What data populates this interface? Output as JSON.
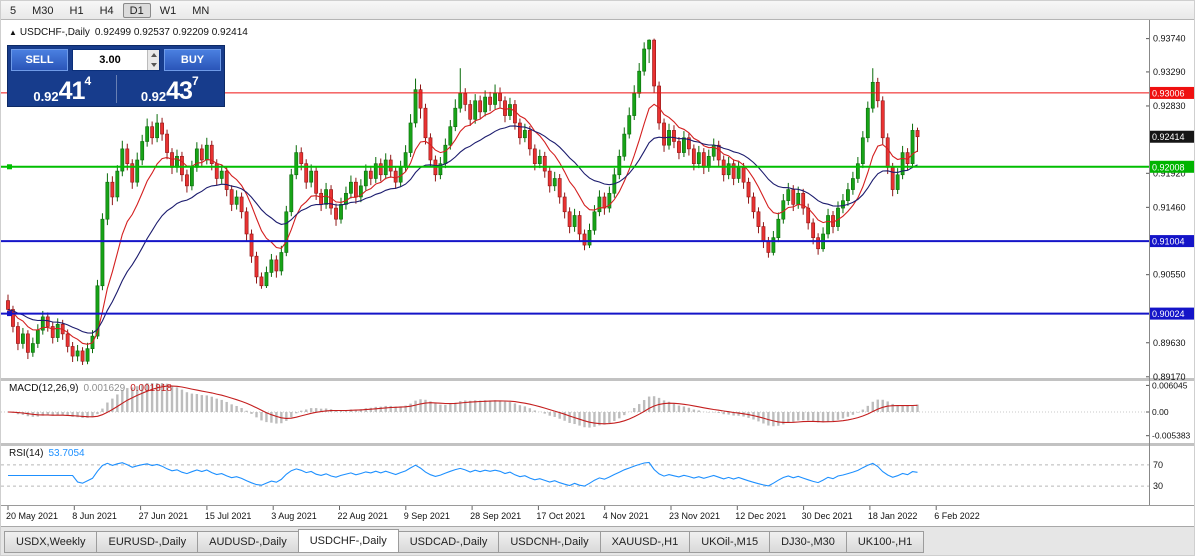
{
  "toolbar": {
    "timeframes": [
      "5",
      "M30",
      "H1",
      "H4",
      "D1",
      "W1",
      "MN"
    ],
    "active": "D1"
  },
  "chart": {
    "collapse_icon": "▲",
    "title": "USDCHF-,Daily",
    "ohlc_text": "0.92499 0.92537 0.92209 0.92414"
  },
  "one_click": {
    "sell_label": "SELL",
    "buy_label": "BUY",
    "volume": "3.00",
    "sell_price": {
      "prefix": "0.92",
      "big": "41",
      "sup": "4"
    },
    "buy_price": {
      "prefix": "0.92",
      "big": "43",
      "sup": "7"
    }
  },
  "indicators": {
    "macd": {
      "label": "MACD(12,26,9)",
      "value": "0.001629",
      "signal_value": "0.001818",
      "axis_labels": [
        "0.006045",
        "0.00",
        "-0.005383"
      ],
      "histogram_color": "#bdbdbd",
      "signal_color": "#c41e1e"
    },
    "rsi": {
      "label": "RSI(14)",
      "value": "53.7054",
      "levels": [
        "70",
        "30"
      ],
      "line_color": "#1e90ff"
    }
  },
  "price_axis": {
    "labels": [
      {
        "text": "0.93740",
        "price": 0.9374
      },
      {
        "text": "0.93290",
        "price": 0.9329
      },
      {
        "text": "0.92830",
        "price": 0.9283
      },
      {
        "text": "0.91920",
        "price": 0.9192
      },
      {
        "text": "0.91460",
        "price": 0.9146
      },
      {
        "text": "0.90550",
        "price": 0.9055
      },
      {
        "text": "0.89630",
        "price": 0.8963
      },
      {
        "text": "0.89170",
        "price": 0.8917
      }
    ],
    "tags": [
      {
        "text": "0.93006",
        "price": 0.93006,
        "color": "#ef1010",
        "name": "resistance-price-tag"
      },
      {
        "text": "0.92414",
        "price": 0.92414,
        "color": "#161616",
        "name": "current-price-tag"
      },
      {
        "text": "0.92008",
        "price": 0.92008,
        "color": "#00b400",
        "name": "support-green-price-tag"
      },
      {
        "text": "0.91004",
        "price": 0.91004,
        "color": "#1414c8",
        "name": "support-blue-price-tag"
      },
      {
        "text": "0.90024",
        "price": 0.90024,
        "color": "#1414c8",
        "name": "support-blue-price-tag-2"
      }
    ]
  },
  "hlines": [
    {
      "price": 0.93006,
      "color": "#ef1010",
      "width": 1,
      "handles": false,
      "name": "resistance-line"
    },
    {
      "price": 0.92008,
      "color": "#00be00",
      "width": 2,
      "handles": true,
      "name": "green-support-line"
    },
    {
      "price": 0.91004,
      "color": "#1414c8",
      "width": 2,
      "handles": false,
      "name": "blue-support-line"
    },
    {
      "price": 0.90024,
      "color": "#1414c8",
      "width": 2,
      "handles": true,
      "name": "blue-support-line-2"
    }
  ],
  "x_axis": {
    "dates": [
      "20 May 2021",
      "8 Jun 2021",
      "27 Jun 2021",
      "15 Jul 2021",
      "3 Aug 2021",
      "22 Aug 2021",
      "9 Sep 2021",
      "28 Sep 2021",
      "17 Oct 2021",
      "4 Nov 2021",
      "23 Nov 2021",
      "12 Dec 2021",
      "30 Dec 2021",
      "18 Jan 2022",
      "6 Feb 2022"
    ]
  },
  "tabs": {
    "items": [
      "USDX,Weekly",
      "EURUSD-,Daily",
      "AUDUSD-,Daily",
      "USDCHF-,Daily",
      "USDCAD-,Daily",
      "USDCNH-,Daily",
      "XAUUSD-,H1",
      "UKOil-,M15",
      "DJ30-,M30",
      "UK100-,H1"
    ],
    "active": "USDCHF-,Daily"
  },
  "chart_data": {
    "type": "candlestick",
    "symbol": "USDCHF",
    "timeframe": "Daily",
    "current_bar": {
      "open": 0.92499,
      "high": 0.92537,
      "low": 0.92209,
      "close": 0.92414
    },
    "bid": "0.92414",
    "ask": "0.92437",
    "colors": {
      "bull": "#17a317",
      "bull_border": "#0a6b0a",
      "bear": "#e93232",
      "bear_border": "#8f1616",
      "ma_fast": "#d42020",
      "ma_slow": "#1c1c6e"
    },
    "ma_periods": {
      "fast": 10,
      "slow": 25
    },
    "candles": [
      [
        0.902,
        0.9028,
        0.9,
        0.9008
      ],
      [
        0.9008,
        0.9013,
        0.8977,
        0.8985
      ],
      [
        0.8985,
        0.8991,
        0.8953,
        0.8962
      ],
      [
        0.8962,
        0.8983,
        0.8955,
        0.8975
      ],
      [
        0.8975,
        0.898,
        0.8941,
        0.895
      ],
      [
        0.895,
        0.897,
        0.8944,
        0.8962
      ],
      [
        0.8962,
        0.8988,
        0.8956,
        0.898
      ],
      [
        0.898,
        0.9006,
        0.8974,
        0.8998
      ],
      [
        0.8998,
        0.9004,
        0.8978,
        0.8985
      ],
      [
        0.8985,
        0.8991,
        0.8962,
        0.897
      ],
      [
        0.897,
        0.8996,
        0.8964,
        0.8988
      ],
      [
        0.8988,
        0.8994,
        0.8967,
        0.8975
      ],
      [
        0.8975,
        0.8981,
        0.895,
        0.8958
      ],
      [
        0.8958,
        0.8964,
        0.8937,
        0.8945
      ],
      [
        0.8945,
        0.896,
        0.8938,
        0.8952
      ],
      [
        0.8952,
        0.8957,
        0.8933,
        0.8938
      ],
      [
        0.8938,
        0.8963,
        0.8934,
        0.8955
      ],
      [
        0.8955,
        0.898,
        0.8949,
        0.8972
      ],
      [
        0.8972,
        0.9048,
        0.8968,
        0.904
      ],
      [
        0.904,
        0.9138,
        0.9034,
        0.913
      ],
      [
        0.913,
        0.9192,
        0.9122,
        0.918
      ],
      [
        0.918,
        0.9188,
        0.9149,
        0.916
      ],
      [
        0.916,
        0.9203,
        0.9154,
        0.9195
      ],
      [
        0.9195,
        0.9236,
        0.9188,
        0.9225
      ],
      [
        0.9225,
        0.9232,
        0.9196,
        0.9205
      ],
      [
        0.9205,
        0.9211,
        0.9171,
        0.918
      ],
      [
        0.918,
        0.922,
        0.9174,
        0.921
      ],
      [
        0.921,
        0.9244,
        0.9203,
        0.9235
      ],
      [
        0.9235,
        0.9266,
        0.9228,
        0.9255
      ],
      [
        0.9255,
        0.9262,
        0.9231,
        0.924
      ],
      [
        0.924,
        0.9272,
        0.9234,
        0.926
      ],
      [
        0.926,
        0.9267,
        0.9236,
        0.9245
      ],
      [
        0.9245,
        0.9251,
        0.9211,
        0.922
      ],
      [
        0.922,
        0.9226,
        0.9191,
        0.92
      ],
      [
        0.92,
        0.9224,
        0.9193,
        0.9215
      ],
      [
        0.9215,
        0.9221,
        0.9181,
        0.919
      ],
      [
        0.919,
        0.9197,
        0.9166,
        0.9175
      ],
      [
        0.9175,
        0.9209,
        0.9169,
        0.92
      ],
      [
        0.92,
        0.9234,
        0.9194,
        0.9225
      ],
      [
        0.9225,
        0.9231,
        0.9201,
        0.921
      ],
      [
        0.921,
        0.924,
        0.9204,
        0.923
      ],
      [
        0.923,
        0.9236,
        0.9196,
        0.9205
      ],
      [
        0.9205,
        0.9211,
        0.9176,
        0.9185
      ],
      [
        0.9185,
        0.9204,
        0.9178,
        0.9195
      ],
      [
        0.9195,
        0.9201,
        0.9161,
        0.917
      ],
      [
        0.917,
        0.9176,
        0.9141,
        0.915
      ],
      [
        0.915,
        0.9169,
        0.9143,
        0.916
      ],
      [
        0.916,
        0.9166,
        0.9131,
        0.914
      ],
      [
        0.914,
        0.9146,
        0.9101,
        0.911
      ],
      [
        0.911,
        0.9116,
        0.9071,
        0.908
      ],
      [
        0.908,
        0.9086,
        0.9043,
        0.9052
      ],
      [
        0.9052,
        0.9058,
        0.9036,
        0.904
      ],
      [
        0.904,
        0.9066,
        0.9037,
        0.9058
      ],
      [
        0.9058,
        0.9083,
        0.9052,
        0.9075
      ],
      [
        0.9075,
        0.9081,
        0.9051,
        0.906
      ],
      [
        0.906,
        0.9094,
        0.9054,
        0.9085
      ],
      [
        0.9085,
        0.9148,
        0.908,
        0.914
      ],
      [
        0.914,
        0.9198,
        0.9134,
        0.919
      ],
      [
        0.919,
        0.923,
        0.9184,
        0.922
      ],
      [
        0.922,
        0.9227,
        0.9196,
        0.9205
      ],
      [
        0.9205,
        0.9211,
        0.9171,
        0.918
      ],
      [
        0.918,
        0.9204,
        0.9173,
        0.9195
      ],
      [
        0.9195,
        0.9201,
        0.9156,
        0.9165
      ],
      [
        0.9165,
        0.9171,
        0.9141,
        0.915
      ],
      [
        0.915,
        0.9179,
        0.9144,
        0.917
      ],
      [
        0.917,
        0.9176,
        0.9136,
        0.9145
      ],
      [
        0.9145,
        0.9151,
        0.9121,
        0.913
      ],
      [
        0.913,
        0.9159,
        0.9124,
        0.915
      ],
      [
        0.915,
        0.9174,
        0.9143,
        0.9165
      ],
      [
        0.9165,
        0.9189,
        0.9158,
        0.918
      ],
      [
        0.918,
        0.9186,
        0.9151,
        0.916
      ],
      [
        0.916,
        0.9184,
        0.9153,
        0.9175
      ],
      [
        0.9175,
        0.9204,
        0.9169,
        0.9195
      ],
      [
        0.9195,
        0.9202,
        0.9176,
        0.9185
      ],
      [
        0.9185,
        0.9214,
        0.9179,
        0.9205
      ],
      [
        0.9205,
        0.9212,
        0.9181,
        0.919
      ],
      [
        0.919,
        0.9219,
        0.9184,
        0.921
      ],
      [
        0.921,
        0.9217,
        0.9186,
        0.9195
      ],
      [
        0.9195,
        0.9201,
        0.9171,
        0.918
      ],
      [
        0.918,
        0.9209,
        0.9174,
        0.92
      ],
      [
        0.92,
        0.923,
        0.9194,
        0.922
      ],
      [
        0.922,
        0.9272,
        0.9214,
        0.926
      ],
      [
        0.926,
        0.932,
        0.9254,
        0.9305
      ],
      [
        0.9305,
        0.9312,
        0.9266,
        0.928
      ],
      [
        0.928,
        0.9286,
        0.9231,
        0.924
      ],
      [
        0.924,
        0.9246,
        0.9201,
        0.921
      ],
      [
        0.921,
        0.9216,
        0.9181,
        0.919
      ],
      [
        0.919,
        0.9214,
        0.9184,
        0.9205
      ],
      [
        0.9205,
        0.9239,
        0.9199,
        0.923
      ],
      [
        0.923,
        0.9264,
        0.9224,
        0.9255
      ],
      [
        0.9255,
        0.9292,
        0.9249,
        0.928
      ],
      [
        0.928,
        0.9334,
        0.9274,
        0.93
      ],
      [
        0.93,
        0.9307,
        0.9276,
        0.9285
      ],
      [
        0.9285,
        0.9291,
        0.9256,
        0.9265
      ],
      [
        0.9265,
        0.9299,
        0.9259,
        0.929
      ],
      [
        0.929,
        0.9297,
        0.9266,
        0.9275
      ],
      [
        0.9275,
        0.9304,
        0.9269,
        0.9295
      ],
      [
        0.9295,
        0.9302,
        0.9276,
        0.9285
      ],
      [
        0.9285,
        0.9312,
        0.9279,
        0.93
      ],
      [
        0.93,
        0.9308,
        0.9281,
        0.929
      ],
      [
        0.929,
        0.9296,
        0.9261,
        0.927
      ],
      [
        0.927,
        0.9294,
        0.9264,
        0.9285
      ],
      [
        0.9285,
        0.9291,
        0.9251,
        0.926
      ],
      [
        0.926,
        0.9266,
        0.9231,
        0.924
      ],
      [
        0.924,
        0.9259,
        0.9234,
        0.925
      ],
      [
        0.925,
        0.9256,
        0.9216,
        0.9225
      ],
      [
        0.9225,
        0.9231,
        0.9196,
        0.9205
      ],
      [
        0.9205,
        0.9224,
        0.9199,
        0.9215
      ],
      [
        0.9215,
        0.9221,
        0.9186,
        0.9195
      ],
      [
        0.9195,
        0.9201,
        0.9166,
        0.9175
      ],
      [
        0.9175,
        0.9194,
        0.9168,
        0.9185
      ],
      [
        0.9185,
        0.9191,
        0.9151,
        0.916
      ],
      [
        0.916,
        0.9166,
        0.9131,
        0.914
      ],
      [
        0.914,
        0.9146,
        0.9111,
        0.912
      ],
      [
        0.912,
        0.9144,
        0.9113,
        0.9135
      ],
      [
        0.9135,
        0.9141,
        0.9101,
        0.911
      ],
      [
        0.911,
        0.9116,
        0.9088,
        0.9095
      ],
      [
        0.9095,
        0.9124,
        0.9091,
        0.9115
      ],
      [
        0.9115,
        0.9149,
        0.9109,
        0.914
      ],
      [
        0.914,
        0.9169,
        0.9134,
        0.916
      ],
      [
        0.916,
        0.9166,
        0.9136,
        0.9145
      ],
      [
        0.9145,
        0.9174,
        0.9139,
        0.9165
      ],
      [
        0.9165,
        0.9199,
        0.9159,
        0.919
      ],
      [
        0.919,
        0.9224,
        0.9184,
        0.9215
      ],
      [
        0.9215,
        0.9254,
        0.9209,
        0.9245
      ],
      [
        0.9245,
        0.9281,
        0.9239,
        0.927
      ],
      [
        0.927,
        0.9311,
        0.9264,
        0.93
      ],
      [
        0.93,
        0.9341,
        0.9294,
        0.933
      ],
      [
        0.933,
        0.9369,
        0.9324,
        0.936
      ],
      [
        0.936,
        0.9373,
        0.9341,
        0.9372
      ],
      [
        0.9372,
        0.9374,
        0.9301,
        0.931
      ],
      [
        0.931,
        0.9316,
        0.9251,
        0.926
      ],
      [
        0.926,
        0.9266,
        0.9221,
        0.923
      ],
      [
        0.923,
        0.9259,
        0.9224,
        0.925
      ],
      [
        0.925,
        0.9257,
        0.9226,
        0.9235
      ],
      [
        0.9235,
        0.9241,
        0.9211,
        0.922
      ],
      [
        0.922,
        0.9249,
        0.9214,
        0.924
      ],
      [
        0.924,
        0.9246,
        0.9216,
        0.9225
      ],
      [
        0.9225,
        0.9231,
        0.9196,
        0.9205
      ],
      [
        0.9205,
        0.9229,
        0.9199,
        0.922
      ],
      [
        0.922,
        0.9226,
        0.9191,
        0.92
      ],
      [
        0.92,
        0.9224,
        0.9194,
        0.9215
      ],
      [
        0.9215,
        0.9239,
        0.9209,
        0.923
      ],
      [
        0.923,
        0.9236,
        0.9201,
        0.921
      ],
      [
        0.921,
        0.9216,
        0.9181,
        0.919
      ],
      [
        0.919,
        0.9214,
        0.9184,
        0.9205
      ],
      [
        0.9205,
        0.9211,
        0.9176,
        0.9185
      ],
      [
        0.9185,
        0.9209,
        0.9179,
        0.92
      ],
      [
        0.92,
        0.9206,
        0.9171,
        0.918
      ],
      [
        0.918,
        0.9186,
        0.9151,
        0.916
      ],
      [
        0.916,
        0.9166,
        0.9131,
        0.914
      ],
      [
        0.914,
        0.9146,
        0.9111,
        0.912
      ],
      [
        0.912,
        0.9126,
        0.9091,
        0.91
      ],
      [
        0.91,
        0.9106,
        0.9078,
        0.9085
      ],
      [
        0.9085,
        0.9114,
        0.9081,
        0.9105
      ],
      [
        0.9105,
        0.9139,
        0.9099,
        0.913
      ],
      [
        0.913,
        0.9164,
        0.9124,
        0.9155
      ],
      [
        0.9155,
        0.9179,
        0.9149,
        0.917
      ],
      [
        0.917,
        0.9176,
        0.9141,
        0.915
      ],
      [
        0.915,
        0.9174,
        0.9144,
        0.9165
      ],
      [
        0.9165,
        0.9171,
        0.9136,
        0.9145
      ],
      [
        0.9145,
        0.9151,
        0.9116,
        0.9125
      ],
      [
        0.9125,
        0.9131,
        0.9096,
        0.9105
      ],
      [
        0.9105,
        0.9111,
        0.9082,
        0.909
      ],
      [
        0.909,
        0.9119,
        0.9086,
        0.911
      ],
      [
        0.911,
        0.9144,
        0.9104,
        0.9135
      ],
      [
        0.9135,
        0.9141,
        0.9111,
        0.912
      ],
      [
        0.912,
        0.9154,
        0.9114,
        0.9145
      ],
      [
        0.9145,
        0.9164,
        0.9138,
        0.9155
      ],
      [
        0.9155,
        0.9179,
        0.9148,
        0.917
      ],
      [
        0.917,
        0.9194,
        0.9163,
        0.9185
      ],
      [
        0.9185,
        0.9214,
        0.9179,
        0.9205
      ],
      [
        0.9205,
        0.9249,
        0.9199,
        0.924
      ],
      [
        0.924,
        0.9289,
        0.9234,
        0.928
      ],
      [
        0.928,
        0.9334,
        0.9274,
        0.9315
      ],
      [
        0.9315,
        0.9321,
        0.9281,
        0.929
      ],
      [
        0.929,
        0.9296,
        0.9231,
        0.924
      ],
      [
        0.924,
        0.9246,
        0.9191,
        0.92
      ],
      [
        0.92,
        0.9206,
        0.9161,
        0.917
      ],
      [
        0.917,
        0.9199,
        0.9164,
        0.919
      ],
      [
        0.919,
        0.9229,
        0.9184,
        0.922
      ],
      [
        0.922,
        0.9226,
        0.9196,
        0.9205
      ],
      [
        0.9205,
        0.9259,
        0.9199,
        0.925
      ],
      [
        0.92499,
        0.92537,
        0.92209,
        0.92414
      ]
    ]
  }
}
